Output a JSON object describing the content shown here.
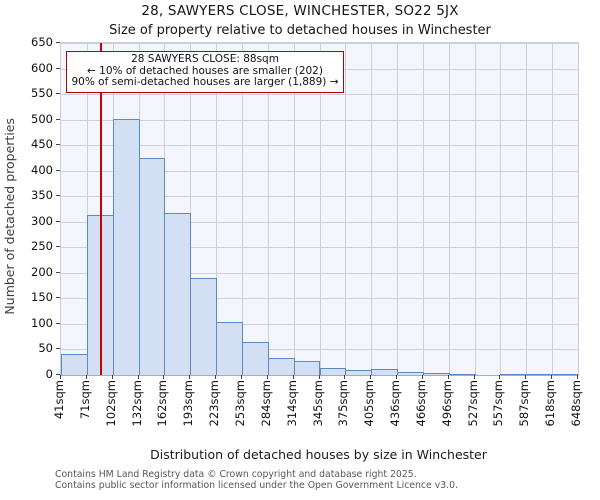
{
  "title": "28, SAWYERS CLOSE, WINCHESTER, SO22 5JX",
  "subtitle": "Size of property relative to detached houses in Winchester",
  "annotation": {
    "line1": "28 SAWYERS CLOSE: 88sqm",
    "line2": "← 10% of detached houses are smaller (202)",
    "line3": "90% of semi-detached houses are larger (1,889) →"
  },
  "chart_data": {
    "type": "bar",
    "title": "28, SAWYERS CLOSE, WINCHESTER, SO22 5JX",
    "subtitle": "Size of property relative to detached houses in Winchester",
    "xlabel": "Distribution of detached houses by size in Winchester",
    "ylabel": "Number of detached properties",
    "ylim": [
      0,
      650
    ],
    "ytick_step": 50,
    "grid": true,
    "bin_edges_sqm": [
      41,
      71,
      102,
      132,
      162,
      193,
      223,
      253,
      284,
      314,
      345,
      375,
      405,
      436,
      466,
      496,
      527,
      557,
      587,
      618,
      648
    ],
    "x_tick_labels": [
      "41sqm",
      "71sqm",
      "102sqm",
      "132sqm",
      "162sqm",
      "193sqm",
      "223sqm",
      "253sqm",
      "284sqm",
      "314sqm",
      "345sqm",
      "375sqm",
      "405sqm",
      "436sqm",
      "466sqm",
      "496sqm",
      "527sqm",
      "557sqm",
      "587sqm",
      "618sqm",
      "648sqm"
    ],
    "values": [
      42,
      313,
      502,
      425,
      317,
      190,
      103,
      65,
      34,
      28,
      13,
      9,
      11,
      6,
      4,
      2,
      0,
      1,
      1,
      1
    ],
    "marker": {
      "sqm": 88,
      "label": "28 SAWYERS CLOSE: 88sqm"
    },
    "colors": {
      "bar_fill": "#d3dff2",
      "bar_border": "#5b8ac5",
      "marker_line": "#c80000",
      "annotation_border": "#b40000",
      "plot_background": "#f3f6fc",
      "gridline": "#cdd0d9"
    }
  },
  "footer": {
    "line1": "Contains HM Land Registry data © Crown copyright and database right 2025.",
    "line2": "Contains public sector information licensed under the Open Government Licence v3.0."
  }
}
